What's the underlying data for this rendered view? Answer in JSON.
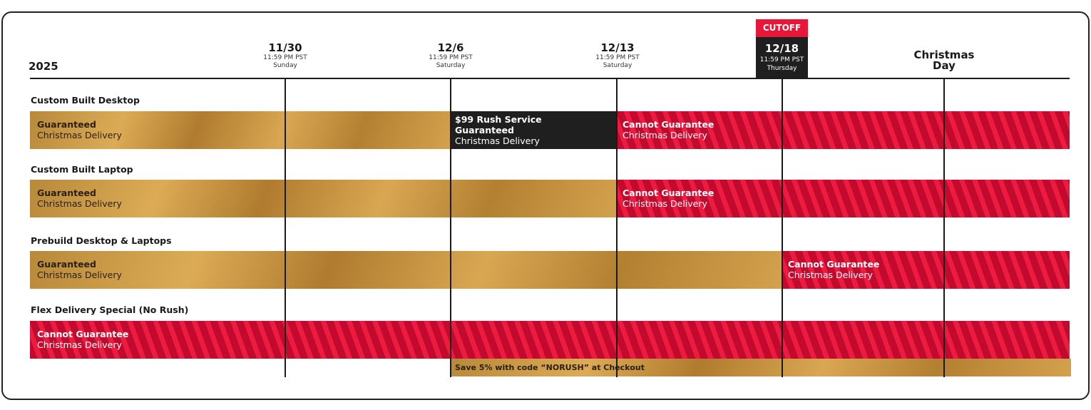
{
  "year": "2025",
  "dates": [
    {
      "date": "11/30",
      "time": "11:59 PM PST",
      "weekday": "Sunday"
    },
    {
      "date": "12/6",
      "time": "11:59 PM PST",
      "weekday": "Saturday"
    },
    {
      "date": "12/13",
      "time": "11:59 PM PST",
      "weekday": "Saturday"
    }
  ],
  "cutoff": {
    "badge": "CUTOFF",
    "date": "12/18",
    "time": "11:59 PM PST",
    "weekday": "Thursday"
  },
  "christmas": {
    "line1": "Christmas",
    "line2": "Day"
  },
  "colors": {
    "gold": "#d9a752",
    "red": "#c20a2e",
    "red_stripe": "#ee1b40",
    "black": "#1f1f1f",
    "cutoff_red": "#e8173a"
  },
  "rows": [
    {
      "label": "Custom Built Desktop",
      "segments": [
        {
          "type": "gold",
          "line1": "Guaranteed",
          "line2": "Christmas Delivery"
        },
        {
          "type": "black",
          "line1": "$99 Rush Service",
          "line1b": "Guaranteed",
          "line2": "Christmas Delivery"
        },
        {
          "type": "red",
          "line1": "Cannot Guarantee",
          "line2": "Christmas Delivery"
        }
      ]
    },
    {
      "label": "Custom Built Laptop",
      "segments": [
        {
          "type": "gold",
          "line1": "Guaranteed",
          "line2": "Christmas Delivery"
        },
        {
          "type": "red",
          "line1": "Cannot Guarantee",
          "line2": "Christmas Delivery"
        }
      ]
    },
    {
      "label": "Prebuild Desktop & Laptops",
      "segments": [
        {
          "type": "gold",
          "line1": "Guaranteed",
          "line2": "Christmas Delivery"
        },
        {
          "type": "red",
          "line1": "Cannot Guarantee",
          "line2": "Christmas Delivery"
        }
      ]
    },
    {
      "label": "Flex Delivery Special (No Rush)",
      "segments": [
        {
          "type": "red",
          "line1": "Cannot Guarantee",
          "line2": "Christmas Delivery"
        }
      ]
    }
  ],
  "promo": "Save 5% with code “NORUSH” at Checkout"
}
